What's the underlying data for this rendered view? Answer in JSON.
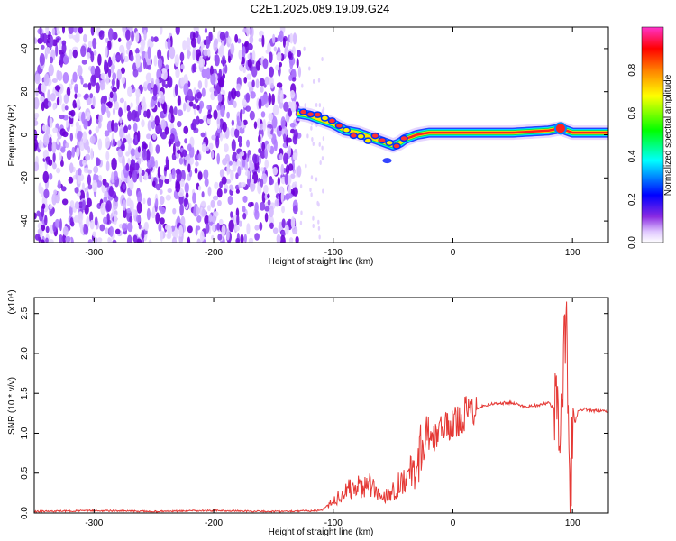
{
  "title": "C2E1.2025.089.19.09.G24",
  "chart_data": [
    {
      "type": "heatmap",
      "xlabel": "Height of straight line (km)",
      "ylabel": "Frequency (Hz)",
      "xlim": [
        -350,
        130
      ],
      "ylim": [
        -50,
        50
      ],
      "xticks": [
        -300,
        -200,
        -100,
        0,
        100
      ],
      "yticks": [
        -40,
        -20,
        0,
        20,
        40
      ],
      "colorbar": {
        "label": "Normalized spectral amplitude",
        "range": [
          0,
          1
        ],
        "ticks": [
          "0.0",
          "0.2",
          "0.4",
          "0.6",
          "0.8"
        ],
        "colors": [
          "#ffffff",
          "#8a2be2",
          "#0000ff",
          "#00ffff",
          "#00ff00",
          "#ffff00",
          "#ff8000",
          "#ff0000",
          "#ff00ff"
        ]
      },
      "ridge": {
        "x": [
          -130,
          -120,
          -110,
          -100,
          -90,
          -80,
          -70,
          -60,
          -50,
          -45,
          -40,
          -30,
          -20,
          0,
          20,
          50,
          80,
          90,
          100,
          110,
          130
        ],
        "y": [
          10,
          9,
          7,
          5,
          2,
          1,
          -1,
          -3,
          -5,
          -4,
          -2,
          0,
          1,
          1,
          1,
          1,
          2,
          3,
          1,
          1,
          1
        ]
      }
    },
    {
      "type": "line",
      "xlabel": "Height of straight line (km)",
      "ylabel": "SNR (10 * v/v)",
      "y_multiplier": "(x10⁴)",
      "xlim": [
        -350,
        130
      ],
      "ylim": [
        0,
        2.7
      ],
      "xticks": [
        -300,
        -200,
        -100,
        0,
        100
      ],
      "yticks": [
        "0.0",
        "0.5",
        "1.0",
        "1.5",
        "2.0",
        "2.5"
      ],
      "series": [
        {
          "color": "#e53935",
          "x": [
            -350,
            -300,
            -250,
            -200,
            -150,
            -110,
            -100,
            -90,
            -80,
            -70,
            -60,
            -50,
            -40,
            -30,
            -25,
            -20,
            -10,
            0,
            10,
            20,
            30,
            40,
            50,
            60,
            70,
            80,
            85,
            90,
            92,
            95,
            98,
            100,
            105,
            110,
            120,
            130
          ],
          "y": [
            0.02,
            0.03,
            0.02,
            0.03,
            0.02,
            0.03,
            0.15,
            0.28,
            0.32,
            0.35,
            0.2,
            0.28,
            0.45,
            0.55,
            0.95,
            0.85,
            1.05,
            1.1,
            1.25,
            1.32,
            1.36,
            1.38,
            1.38,
            1.33,
            1.35,
            1.38,
            1.3,
            1.2,
            1.6,
            2.55,
            0.2,
            1.0,
            1.3,
            1.3,
            1.28,
            1.27
          ]
        }
      ]
    }
  ]
}
